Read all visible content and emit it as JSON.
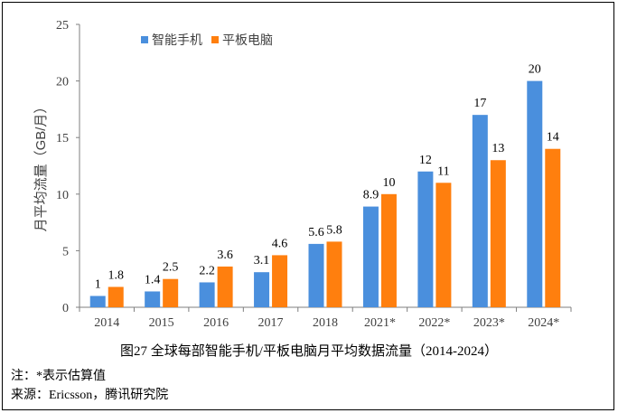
{
  "chart_data": {
    "type": "bar",
    "ylabel": "月平均流量（GB/月）",
    "ylim": [
      0,
      25
    ],
    "yticks": [
      0,
      5,
      10,
      15,
      20,
      25
    ],
    "grid": false,
    "legend_position": "top-left",
    "categories": [
      "2014",
      "2015",
      "2016",
      "2017",
      "2018",
      "2021*",
      "2022*",
      "2023*",
      "2024*"
    ],
    "series": [
      {
        "name": "智能手机",
        "color": "#4a8fdd",
        "values": [
          1,
          1.4,
          2.2,
          3.1,
          5.6,
          8.9,
          12,
          17,
          20
        ]
      },
      {
        "name": "平板电脑",
        "color": "#ff7f0e",
        "values": [
          1.8,
          2.5,
          3.6,
          4.6,
          5.8,
          10,
          11,
          13,
          14
        ]
      }
    ]
  },
  "caption": "图27  全球每部智能手机/平板电脑月平均数据流量（2014-2024）",
  "notes": {
    "note1": "注：*表示估算值",
    "note2": "来源：Ericsson，腾讯研究院"
  }
}
